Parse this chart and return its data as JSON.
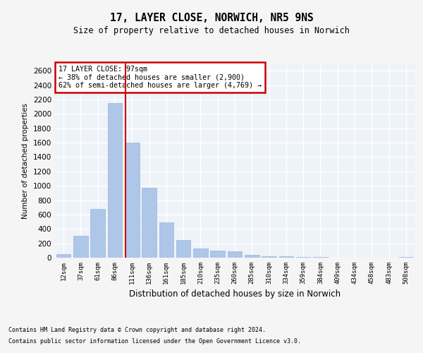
{
  "title1": "17, LAYER CLOSE, NORWICH, NR5 9NS",
  "title2": "Size of property relative to detached houses in Norwich",
  "xlabel": "Distribution of detached houses by size in Norwich",
  "ylabel": "Number of detached properties",
  "footnote1": "Contains HM Land Registry data © Crown copyright and database right 2024.",
  "footnote2": "Contains public sector information licensed under the Open Government Licence v3.0.",
  "annotation_title": "17 LAYER CLOSE: 97sqm",
  "annotation_line1": "← 38% of detached houses are smaller (2,900)",
  "annotation_line2": "62% of semi-detached houses are larger (4,769) →",
  "categories": [
    "12sqm",
    "37sqm",
    "61sqm",
    "86sqm",
    "111sqm",
    "136sqm",
    "161sqm",
    "185sqm",
    "210sqm",
    "235sqm",
    "260sqm",
    "285sqm",
    "310sqm",
    "334sqm",
    "359sqm",
    "384sqm",
    "409sqm",
    "434sqm",
    "458sqm",
    "483sqm",
    "508sqm"
  ],
  "values": [
    50,
    300,
    675,
    2150,
    1600,
    975,
    490,
    245,
    130,
    100,
    85,
    35,
    15,
    20,
    8,
    5,
    4,
    4,
    4,
    4,
    8
  ],
  "bar_color": "#aec6e8",
  "bar_edge_color": "#9ab8d8",
  "redline_x": 3.62,
  "ylim": [
    0,
    2700
  ],
  "yticks": [
    0,
    200,
    400,
    600,
    800,
    1000,
    1200,
    1400,
    1600,
    1800,
    2000,
    2200,
    2400,
    2600
  ],
  "background_color": "#eef2f9",
  "grid_color": "#ffffff",
  "annotation_box_color": "#ffffff",
  "annotation_box_edge": "#cc0000",
  "redline_color": "#cc0000",
  "fig_bg": "#f5f5f5"
}
